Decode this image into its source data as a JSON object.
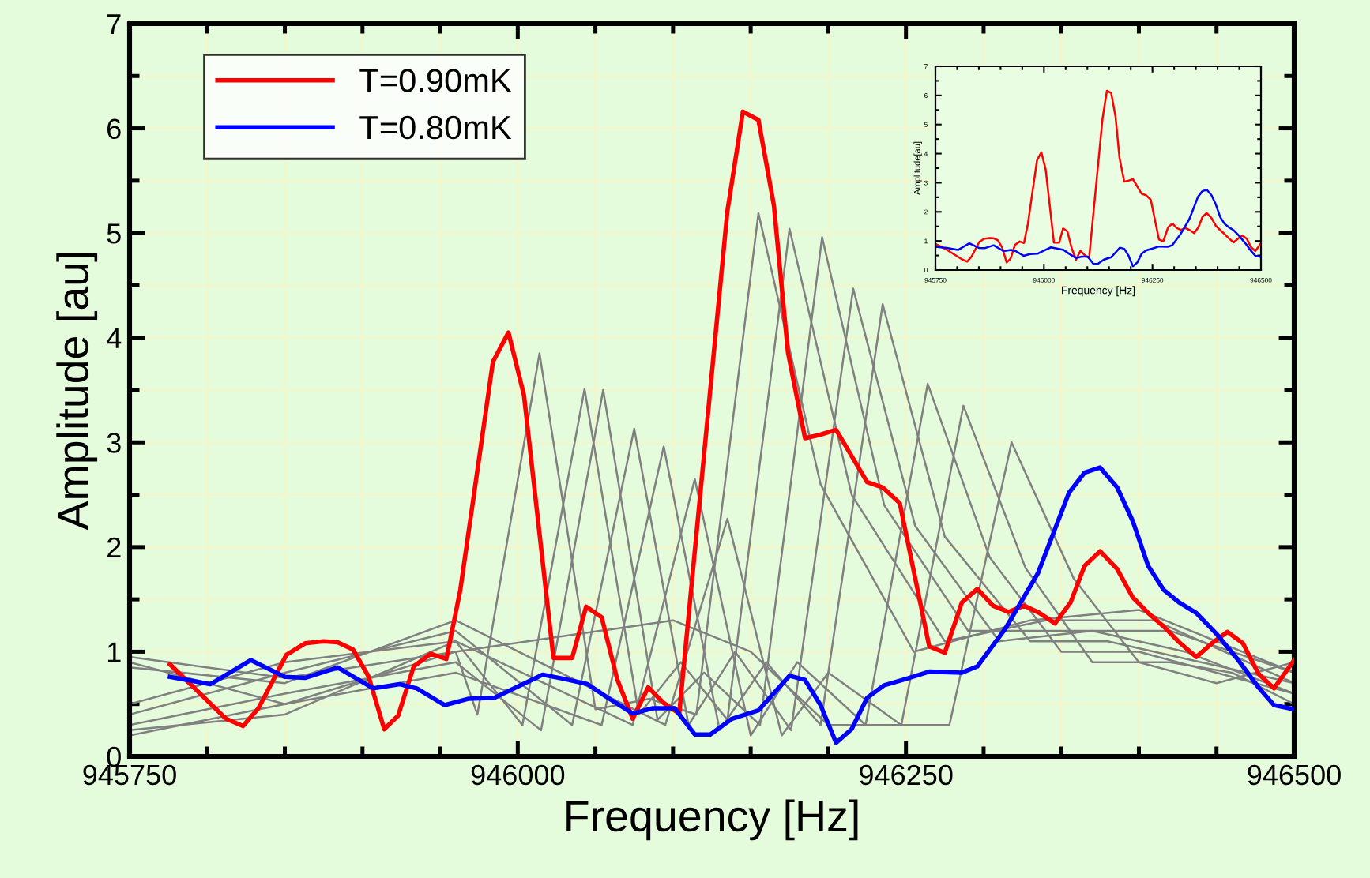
{
  "chart_data": [
    {
      "type": "line",
      "xlabel": "Frequency [Hz]",
      "ylabel": "Amplitude [au]",
      "xlim": [
        945750,
        946500
      ],
      "xticks": [
        945750,
        946000,
        946250,
        946500
      ],
      "ylim": [
        0,
        7
      ],
      "yticks": [
        0,
        1,
        2,
        3,
        4,
        5,
        6,
        7
      ],
      "grid": true,
      "legend": "top left",
      "marker": "none",
      "line_style": "solid",
      "series": [
        {
          "color": "#808080",
          "x": [
            945750,
            945850,
            945960,
            945974,
            946014,
            946050,
            946085,
            946115,
            946155,
            946195,
            946255,
            946330,
            946400,
            946500
          ],
          "values": [
            0.95,
            0.75,
            1.0,
            0.4,
            3.85,
            0.45,
            0.55,
            0.4,
            5.19,
            2.6,
            1.0,
            1.3,
            1.4,
            0.8
          ]
        },
        {
          "color": "#808080",
          "x": [
            945750,
            945850,
            945960,
            946003,
            946043,
            946078,
            946105,
            946135,
            946175,
            946215,
            946275,
            946340,
            946410,
            946500
          ],
          "values": [
            0.5,
            0.9,
            1.1,
            0.3,
            3.51,
            0.4,
            0.9,
            0.35,
            5.04,
            2.5,
            1.1,
            1.3,
            1.3,
            0.7
          ]
        },
        {
          "color": "#808080",
          "x": [
            945750,
            945850,
            945960,
            946015,
            946055,
            946090,
            946120,
            946156,
            946196,
            946236,
            946290,
            946350,
            946420,
            946500
          ],
          "values": [
            0.3,
            0.6,
            0.9,
            0.25,
            3.5,
            0.35,
            0.8,
            0.3,
            4.96,
            2.4,
            1.2,
            1.2,
            1.2,
            0.8
          ]
        },
        {
          "color": "#808080",
          "x": [
            945750,
            945850,
            945960,
            946035,
            946075,
            946110,
            946140,
            946176,
            946216,
            946256,
            946310,
            946370,
            946430,
            946500
          ],
          "values": [
            0.4,
            0.8,
            1.2,
            0.3,
            3.13,
            0.3,
            1.0,
            0.25,
            4.47,
            2.2,
            1.1,
            1.2,
            1.0,
            0.6
          ]
        },
        {
          "color": "#808080",
          "x": [
            945750,
            945850,
            945960,
            946054,
            946094,
            946130,
            946160,
            946195,
            946235,
            946275,
            946330,
            946380,
            946440,
            946500
          ],
          "values": [
            0.9,
            0.5,
            0.8,
            0.3,
            2.96,
            0.25,
            0.9,
            0.3,
            4.32,
            2.1,
            1.1,
            1.1,
            0.9,
            0.7
          ]
        },
        {
          "color": "#808080",
          "x": [
            945750,
            945850,
            945960,
            946074,
            946114,
            946150,
            946180,
            946224,
            946264,
            946304,
            946350,
            946400,
            946450,
            946500
          ],
          "values": [
            0.25,
            0.4,
            1.1,
            0.3,
            2.65,
            0.2,
            0.9,
            0.3,
            3.56,
            1.9,
            1.0,
            1.0,
            0.8,
            0.6
          ]
        },
        {
          "color": "#808080",
          "x": [
            945750,
            945850,
            945960,
            946095,
            946135,
            946170,
            946200,
            946247,
            946287,
            946327,
            946370,
            946420,
            946460,
            946500
          ],
          "values": [
            0.85,
            0.7,
            1.3,
            0.3,
            2.27,
            0.2,
            0.8,
            0.3,
            3.35,
            1.8,
            0.9,
            0.9,
            0.8,
            0.5
          ]
        },
        {
          "color": "#808080",
          "x": [
            945750,
            945850,
            945960,
            946100,
            946150,
            946200,
            946278,
            946318,
            946358,
            946400,
            946450,
            946500
          ],
          "values": [
            0.2,
            0.5,
            1.0,
            1.3,
            1.0,
            0.3,
            0.3,
            3.0,
            1.7,
            0.9,
            0.7,
            0.9
          ]
        },
        {
          "name": "T=0.90mK",
          "color": "#ff0000",
          "x": [
            945776,
            945812,
            945823,
            945833,
            945851,
            945863,
            945875,
            945884,
            945894,
            945904,
            945914,
            945923,
            945933,
            945944,
            945954,
            945963,
            945984,
            945994,
            946004,
            946023,
            946035,
            946044,
            946054,
            946064,
            946074,
            946084,
            946094,
            946104,
            946135,
            946145,
            946155,
            946165,
            946174,
            946185,
            946194,
            946205,
            946225,
            946235,
            946246,
            946265,
            946275,
            946286,
            946296,
            946306,
            946316,
            946326,
            946336,
            946346,
            946356,
            946365,
            946375,
            946386,
            946396,
            946406,
            946416,
            946426,
            946437,
            946447,
            946457,
            946467,
            946477,
            946487,
            946500
          ],
          "values": [
            0.88,
            0.36,
            0.29,
            0.46,
            0.97,
            1.08,
            1.1,
            1.09,
            1.02,
            0.76,
            0.26,
            0.39,
            0.86,
            0.98,
            0.93,
            1.59,
            3.77,
            4.05,
            3.45,
            0.94,
            0.94,
            1.43,
            1.33,
            0.74,
            0.36,
            0.66,
            0.51,
            0.41,
            5.21,
            6.16,
            6.08,
            5.26,
            3.86,
            3.04,
            3.07,
            3.12,
            2.62,
            2.57,
            2.42,
            1.05,
            0.99,
            1.47,
            1.6,
            1.44,
            1.38,
            1.44,
            1.37,
            1.27,
            1.47,
            1.82,
            1.96,
            1.79,
            1.52,
            1.37,
            1.24,
            1.09,
            0.95,
            1.08,
            1.19,
            1.08,
            0.79,
            0.65,
            0.92
          ]
        },
        {
          "name": "T=0.80mK",
          "color": "#0000ff",
          "x": [
            945776,
            945802,
            945828,
            945850,
            945863,
            945884,
            945907,
            945924,
            945935,
            945953,
            945968,
            945985,
            945999,
            946016,
            946030,
            946045,
            946058,
            946074,
            946087,
            946101,
            946114,
            946124,
            946138,
            946155,
            946175,
            946185,
            946195,
            946205,
            946215,
            946225,
            946236,
            946250,
            946265,
            946286,
            946296,
            946314,
            946335,
            946355,
            946365,
            946375,
            946386,
            946396,
            946406,
            946416,
            946426,
            946437,
            946450,
            946464,
            946477,
            946487,
            946500
          ],
          "values": [
            0.76,
            0.69,
            0.92,
            0.76,
            0.75,
            0.85,
            0.65,
            0.69,
            0.65,
            0.49,
            0.55,
            0.56,
            0.66,
            0.78,
            0.74,
            0.69,
            0.56,
            0.41,
            0.46,
            0.46,
            0.21,
            0.21,
            0.36,
            0.44,
            0.77,
            0.73,
            0.49,
            0.13,
            0.26,
            0.56,
            0.68,
            0.74,
            0.81,
            0.8,
            0.86,
            1.22,
            1.75,
            2.52,
            2.71,
            2.76,
            2.57,
            2.25,
            1.82,
            1.59,
            1.47,
            1.37,
            1.17,
            0.92,
            0.66,
            0.49,
            0.45
          ]
        }
      ]
    },
    {
      "type": "line",
      "xlabel": "Frequency [Hz]",
      "ylabel": "Amplitude[au]",
      "xlim": [
        945750,
        946500
      ],
      "xticks": [
        945750,
        946000,
        946250,
        946500
      ],
      "ylim": [
        0,
        7
      ],
      "yticks": [
        0,
        1,
        2,
        3,
        4,
        5,
        6,
        7
      ],
      "marker": "none",
      "line_style": "solid",
      "series": [
        {
          "color": "#ff0000",
          "x": [
            945750,
            945776,
            945812,
            945823,
            945833,
            945851,
            945863,
            945875,
            945884,
            945894,
            945904,
            945914,
            945923,
            945933,
            945944,
            945954,
            945963,
            945984,
            945994,
            946004,
            946023,
            946035,
            946044,
            946054,
            946064,
            946074,
            946084,
            946094,
            946104,
            946135,
            946145,
            946155,
            946165,
            946174,
            946185,
            946194,
            946205,
            946225,
            946235,
            946246,
            946265,
            946275,
            946286,
            946296,
            946306,
            946316,
            946326,
            946336,
            946346,
            946356,
            946365,
            946375,
            946386,
            946396,
            946406,
            946416,
            946426,
            946437,
            946447,
            946457,
            946467,
            946477,
            946487,
            946500
          ],
          "values": [
            0.9,
            0.7,
            0.36,
            0.29,
            0.46,
            0.97,
            1.08,
            1.1,
            1.09,
            1.02,
            0.76,
            0.26,
            0.39,
            0.86,
            0.98,
            0.93,
            1.59,
            3.77,
            4.05,
            3.45,
            0.94,
            0.94,
            1.43,
            1.33,
            0.74,
            0.36,
            0.66,
            0.51,
            0.41,
            5.21,
            6.16,
            6.08,
            5.26,
            3.86,
            3.04,
            3.07,
            3.12,
            2.62,
            2.57,
            2.42,
            1.05,
            0.99,
            1.47,
            1.6,
            1.44,
            1.38,
            1.44,
            1.37,
            1.27,
            1.47,
            1.82,
            1.96,
            1.79,
            1.52,
            1.37,
            1.24,
            1.09,
            0.95,
            1.08,
            1.19,
            1.08,
            0.79,
            0.65,
            0.92
          ]
        },
        {
          "color": "#0000ff",
          "x": [
            945750,
            945776,
            945802,
            945828,
            945850,
            945863,
            945884,
            945907,
            945924,
            945935,
            945953,
            945968,
            945985,
            945999,
            946016,
            946030,
            946045,
            946058,
            946074,
            946087,
            946101,
            946114,
            946124,
            946138,
            946155,
            946175,
            946185,
            946195,
            946205,
            946215,
            946225,
            946236,
            946250,
            946265,
            946286,
            946296,
            946314,
            946335,
            946355,
            946365,
            946375,
            946386,
            946396,
            946406,
            946416,
            946426,
            946437,
            946450,
            946464,
            946477,
            946487,
            946500
          ],
          "values": [
            0.8,
            0.76,
            0.69,
            0.92,
            0.76,
            0.75,
            0.85,
            0.65,
            0.69,
            0.65,
            0.49,
            0.55,
            0.56,
            0.66,
            0.78,
            0.74,
            0.69,
            0.56,
            0.41,
            0.46,
            0.46,
            0.21,
            0.21,
            0.36,
            0.44,
            0.77,
            0.73,
            0.49,
            0.13,
            0.26,
            0.56,
            0.68,
            0.74,
            0.81,
            0.8,
            0.86,
            1.22,
            1.75,
            2.52,
            2.71,
            2.76,
            2.57,
            2.25,
            1.82,
            1.59,
            1.47,
            1.37,
            1.17,
            0.92,
            0.66,
            0.49,
            0.45
          ]
        }
      ]
    }
  ]
}
